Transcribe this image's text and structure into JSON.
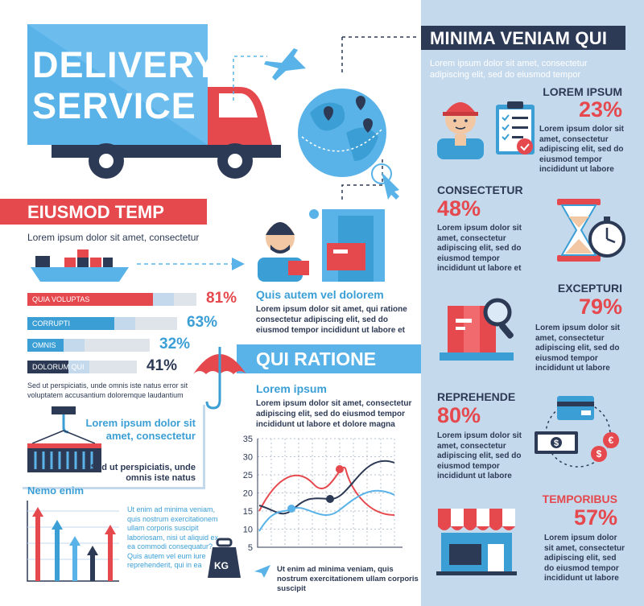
{
  "colors": {
    "red": "#e5484d",
    "blue": "#3b9fd6",
    "lightblue": "#5ab3e8",
    "navy": "#2d3a55",
    "panel": "#c5d9ec"
  },
  "hero": {
    "title_line1": "DELIVERY",
    "title_line2": "SERVICE",
    "kg": "KG"
  },
  "left": {
    "heading": "EIUSMOD TEMP",
    "subtitle": "Lorem ipsum dolor sit amet, consectetur",
    "bars": [
      {
        "label": "QUIA VOLUPTAS",
        "pct": "81%",
        "value": 0.81,
        "color": "#e5484d"
      },
      {
        "label": "CORRUPTI",
        "pct": "63%",
        "value": 0.63,
        "color": "#3b9fd6"
      },
      {
        "label": "OMNIS",
        "pct": "32%",
        "value": 0.32,
        "color": "#3b9fd6"
      },
      {
        "label": "DOLORUM QUI",
        "pct": "41%",
        "value": 0.41,
        "color": "#2d3a55"
      }
    ],
    "bars_note": "Sed ut perspiciatis, unde omnis iste natus error sit voluptatem accusantium doloremque laudantium",
    "box_title": "Lorem ipsum dolor sit amet, consectetur",
    "box_text": "Sed ut perspiciatis, unde omnis iste natus",
    "nemo_title": "Nemo enim",
    "nemo_text": "Ut enim ad minima veniam, quis nostrum exercitationem ullam corporis suscipit laboriosam, nisi ut aliquid ex ea commodi consequatur? Quis autem vel eum iure reprehenderit, qui in ea"
  },
  "middle": {
    "quis_title": "Quis autem vel dolorem",
    "quis_text": "Lorem ipsum dolor sit amet, qui ratione consectetur adipiscing elit, sed do eiusmod tempor incididunt ut labore et",
    "ribbon": "QUI RATIONE",
    "lorem_title": "Lorem ipsum",
    "lorem_text": "Lorem ipsum dolor sit amet, consectetur adipiscing elit, sed do eiusmod tempor incididunt ut labore et dolore magna",
    "bottom_text": "Ut enim ad minima veniam, quis nostrum exercitationem ullam corporis suscipit"
  },
  "chart_data": {
    "type": "line",
    "y_ticks": [
      "35",
      "30",
      "25",
      "20",
      "15",
      "10",
      "5"
    ],
    "ylim": [
      5,
      35
    ],
    "grid": true
  },
  "right": {
    "title": "MINIMA VENIAM QUI",
    "intro": "Lorem ipsum dolor sit amet, consectetur adipiscing elit, sed do eiusmod tempor",
    "blocks": [
      {
        "heading": "LOREM IPSUM",
        "pct": "23%",
        "text": "Lorem ipsum dolor sit amet, consectetur adipiscing elit, sed do eiusmod tempor incididunt ut labore"
      },
      {
        "heading": "CONSECTETUR",
        "pct": "48%",
        "text": "Lorem ipsum dolor sit amet, consectetur adipiscing elit, sed do eiusmod tempor incididunt ut labore et"
      },
      {
        "heading": "EXCEPTURI",
        "pct": "79%",
        "text": "Lorem ipsum dolor sit amet, consectetur adipiscing elit, sed do eiusmod tempor incididunt ut labore"
      },
      {
        "heading": "REPREHENDE",
        "pct": "80%",
        "text": "Lorem ipsum dolor sit amet, consectetur adipiscing elit, sed do eiusmod tempor incididunt ut labore"
      },
      {
        "heading": "TEMPORIBUS",
        "pct": "57%",
        "text": "Lorem ipsum dolor sit amet, consectetur adipiscing elit, sed do eiusmod tempor incididunt ut labore"
      }
    ]
  }
}
